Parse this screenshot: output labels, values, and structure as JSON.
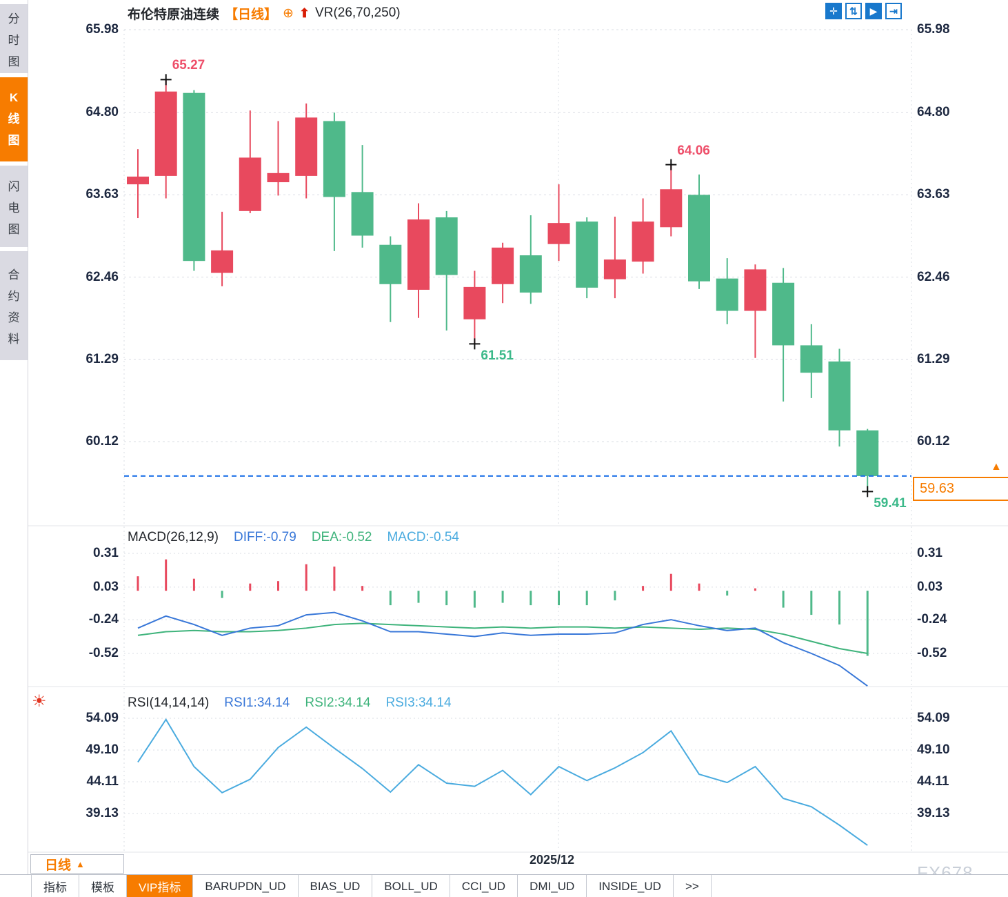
{
  "colors": {
    "up": "#e8495e",
    "down": "#4fb98a",
    "diff_line": "#3877d8",
    "dea_line": "#3eb37b",
    "rsi_line": "#4aabdf",
    "accent_orange": "#f77c00",
    "icon_blue": "#1878cc",
    "dashed_price_line": "#1a6fe8",
    "marker_red": "#ee4f6a",
    "marker_green": "#3cb98a",
    "grid": "#d9dce3"
  },
  "sidebar": {
    "items": [
      {
        "label": "分时图",
        "active": false
      },
      {
        "label": "K线图",
        "active": true
      },
      {
        "label": "闪电图",
        "active": false
      },
      {
        "label": "合约资料",
        "active": false
      }
    ]
  },
  "header": {
    "instrument": "布伦特原油连续",
    "period": "【日线】",
    "crosshair_glyph": "⊕",
    "arrow_glyph": "⬆",
    "indicator": "VR(26,70,250)"
  },
  "toolbar": {
    "icons": [
      {
        "name": "crosshair-pan-icon",
        "glyph": "✛",
        "filled": true
      },
      {
        "name": "axis-scale-icon",
        "glyph": "⇅",
        "filled": false
      },
      {
        "name": "play-forward-icon",
        "glyph": "▶",
        "filled": true
      },
      {
        "name": "goto-latest-icon",
        "glyph": "⇥",
        "filled": false
      }
    ]
  },
  "price_axis": {
    "labels": [
      "65.98",
      "64.80",
      "63.63",
      "62.46",
      "61.29",
      "60.12"
    ]
  },
  "price_line": {
    "label": "59.63",
    "value": 59.63,
    "arrow": "▲"
  },
  "markers": [
    {
      "text": "65.27",
      "index": 1,
      "pos": "high",
      "color": "#ee4f6a"
    },
    {
      "text": "64.06",
      "index": 19,
      "pos": "high",
      "color": "#ee4f6a"
    },
    {
      "text": "61.51",
      "index": 12,
      "pos": "low",
      "color": "#3cb98a"
    },
    {
      "text": "59.41",
      "index": 26,
      "pos": "low",
      "color": "#3cb98a"
    }
  ],
  "macd_panel": {
    "title": "MACD(26,12,9)",
    "diff_label": "DIFF:-0.79",
    "dea_label": "DEA:-0.52",
    "macd_label": "MACD:-0.54",
    "axis": [
      "0.31",
      "0.03",
      "-0.24",
      "-0.52"
    ]
  },
  "rsi_panel": {
    "title": "RSI(14,14,14)",
    "rsi1_label": "RSI1:34.14",
    "rsi2_label": "RSI2:34.14",
    "rsi3_label": "RSI3:34.14",
    "axis": [
      "54.09",
      "49.10",
      "44.11",
      "39.13"
    ]
  },
  "bottom": {
    "period_button": "日线",
    "period_arrow": "▲",
    "date_label": "2025/12",
    "watermark": "FX678",
    "tabs": [
      {
        "label": "指标",
        "active": false
      },
      {
        "label": "模板",
        "active": false
      },
      {
        "label": "VIP指标",
        "active": true
      },
      {
        "label": "BARUPDN_UD",
        "active": false
      },
      {
        "label": "BIAS_UD",
        "active": false
      },
      {
        "label": "BOLL_UD",
        "active": false
      },
      {
        "label": "CCI_UD",
        "active": false
      },
      {
        "label": "DMI_UD",
        "active": false
      },
      {
        "label": "INSIDE_UD",
        "active": false
      },
      {
        "label": ">>",
        "active": false
      }
    ]
  },
  "chart_data": {
    "type": "candlestick",
    "title": "布伦特原油连续 日线",
    "x_axis_label": "2025/12",
    "price_axis_ticks": [
      65.98,
      64.8,
      63.63,
      62.46,
      61.29,
      60.12
    ],
    "macd_axis_ticks": [
      0.31,
      0.03,
      -0.24,
      -0.52
    ],
    "rsi_axis_ticks": [
      54.09,
      49.1,
      44.11,
      39.13
    ],
    "last_price": 59.63,
    "marked_high": 65.27,
    "marked_secondary_high": 64.06,
    "marked_mid_low": 61.51,
    "marked_final_low": 59.41,
    "candles": [
      {
        "o": 63.78,
        "h": 64.28,
        "l": 63.3,
        "c": 63.89
      },
      {
        "o": 63.9,
        "h": 65.27,
        "l": 63.58,
        "c": 65.1
      },
      {
        "o": 65.08,
        "h": 65.12,
        "l": 62.55,
        "c": 62.69
      },
      {
        "o": 62.52,
        "h": 63.39,
        "l": 62.33,
        "c": 62.84
      },
      {
        "o": 63.4,
        "h": 64.83,
        "l": 63.37,
        "c": 64.16
      },
      {
        "o": 63.81,
        "h": 64.68,
        "l": 63.62,
        "c": 63.94
      },
      {
        "o": 63.9,
        "h": 64.93,
        "l": 63.58,
        "c": 64.73
      },
      {
        "o": 64.68,
        "h": 64.8,
        "l": 62.83,
        "c": 63.6
      },
      {
        "o": 63.67,
        "h": 64.34,
        "l": 62.88,
        "c": 63.05
      },
      {
        "o": 62.92,
        "h": 63.04,
        "l": 61.82,
        "c": 62.36
      },
      {
        "o": 62.28,
        "h": 63.51,
        "l": 61.88,
        "c": 63.28
      },
      {
        "o": 63.31,
        "h": 63.4,
        "l": 61.7,
        "c": 62.49
      },
      {
        "o": 61.86,
        "h": 62.55,
        "l": 61.51,
        "c": 62.32
      },
      {
        "o": 62.36,
        "h": 62.95,
        "l": 62.09,
        "c": 62.88
      },
      {
        "o": 62.77,
        "h": 63.34,
        "l": 62.08,
        "c": 62.24
      },
      {
        "o": 62.93,
        "h": 63.78,
        "l": 62.69,
        "c": 63.23
      },
      {
        "o": 63.25,
        "h": 63.31,
        "l": 62.16,
        "c": 62.31
      },
      {
        "o": 62.43,
        "h": 63.32,
        "l": 62.16,
        "c": 62.71
      },
      {
        "o": 62.68,
        "h": 63.58,
        "l": 62.51,
        "c": 63.25
      },
      {
        "o": 63.17,
        "h": 64.06,
        "l": 63.04,
        "c": 63.71
      },
      {
        "o": 63.63,
        "h": 63.92,
        "l": 62.29,
        "c": 62.4
      },
      {
        "o": 62.44,
        "h": 62.73,
        "l": 61.79,
        "c": 61.98
      },
      {
        "o": 61.98,
        "h": 62.64,
        "l": 61.31,
        "c": 62.57
      },
      {
        "o": 62.38,
        "h": 62.59,
        "l": 60.69,
        "c": 61.49
      },
      {
        "o": 61.49,
        "h": 61.79,
        "l": 60.74,
        "c": 61.1
      },
      {
        "o": 61.26,
        "h": 61.44,
        "l": 60.05,
        "c": 60.28
      },
      {
        "o": 60.28,
        "h": 60.3,
        "l": 59.41,
        "c": 59.63
      }
    ],
    "macd": {
      "diff": [
        -0.31,
        -0.21,
        -0.28,
        -0.37,
        -0.31,
        -0.29,
        -0.2,
        -0.18,
        -0.25,
        -0.34,
        -0.34,
        -0.36,
        -0.38,
        -0.35,
        -0.37,
        -0.36,
        -0.36,
        -0.35,
        -0.28,
        -0.24,
        -0.29,
        -0.33,
        -0.31,
        -0.43,
        -0.52,
        -0.62,
        -0.79
      ],
      "dea": [
        -0.37,
        -0.34,
        -0.33,
        -0.34,
        -0.34,
        -0.33,
        -0.31,
        -0.28,
        -0.27,
        -0.28,
        -0.29,
        -0.3,
        -0.31,
        -0.3,
        -0.31,
        -0.3,
        -0.3,
        -0.31,
        -0.3,
        -0.31,
        -0.32,
        -0.31,
        -0.32,
        -0.36,
        -0.42,
        -0.48,
        -0.52
      ],
      "hist": [
        0.12,
        0.26,
        0.1,
        -0.06,
        0.06,
        0.08,
        0.22,
        0.2,
        0.04,
        -0.12,
        -0.1,
        -0.12,
        -0.14,
        -0.1,
        -0.12,
        -0.12,
        -0.12,
        -0.08,
        0.04,
        0.14,
        0.06,
        -0.04,
        0.02,
        -0.14,
        -0.2,
        -0.28,
        -0.54
      ]
    },
    "rsi": [
      47.2,
      53.9,
      46.5,
      42.4,
      44.5,
      49.5,
      52.7,
      49.4,
      46.2,
      42.5,
      46.8,
      43.9,
      43.4,
      45.9,
      42.1,
      46.5,
      44.3,
      46.3,
      48.7,
      52.1,
      45.3,
      44.0,
      46.5,
      41.5,
      40.2,
      37.3,
      34.14
    ]
  }
}
